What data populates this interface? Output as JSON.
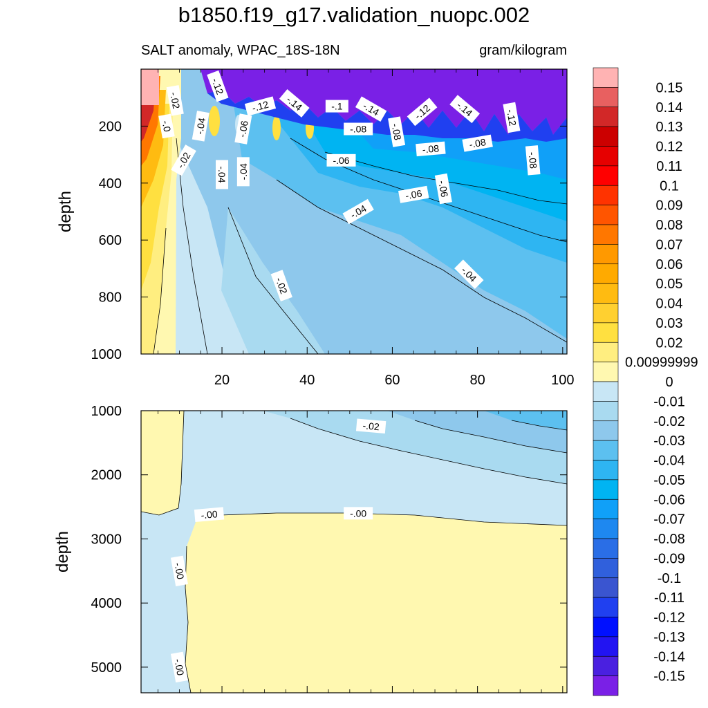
{
  "title": "b1850.f19_g17.validation_nuopc.002",
  "subtitle_left": "SALT anomaly, WPAC_18S-18N",
  "subtitle_right": "gram/kilogram",
  "chart_data": [
    {
      "type": "heatmap",
      "panel": "upper",
      "ylabel": "depth",
      "xlabel": "",
      "xlim": [
        1,
        101
      ],
      "ylim": [
        1000,
        0
      ],
      "x_ticks": [
        "20",
        "40",
        "60",
        "80",
        "100"
      ],
      "y_ticks": [
        "200",
        "400",
        "600",
        "800",
        "1000"
      ],
      "contour_labels": [
        {
          "text": "-.12",
          "x": 19,
          "y": 60
        },
        {
          "text": "-.12",
          "x": 29,
          "y": 130
        },
        {
          "text": "-.14",
          "x": 37,
          "y": 120
        },
        {
          "text": "-.1",
          "x": 47,
          "y": 130
        },
        {
          "text": "-.14",
          "x": 55,
          "y": 140
        },
        {
          "text": "-.12",
          "x": 67,
          "y": 150
        },
        {
          "text": "-.14",
          "x": 77,
          "y": 140
        },
        {
          "text": "-.12",
          "x": 88,
          "y": 170
        },
        {
          "text": "-.02",
          "x": 9,
          "y": 110
        },
        {
          "text": "-.0",
          "x": 7,
          "y": 200
        },
        {
          "text": "-.04",
          "x": 15,
          "y": 200
        },
        {
          "text": "-.06",
          "x": 25,
          "y": 210
        },
        {
          "text": "-.08",
          "x": 52,
          "y": 210
        },
        {
          "text": "-.08",
          "x": 61,
          "y": 220
        },
        {
          "text": "-.08",
          "x": 69,
          "y": 280
        },
        {
          "text": "-.08",
          "x": 80,
          "y": 260
        },
        {
          "text": "-.08",
          "x": 93,
          "y": 320
        },
        {
          "text": "-.02",
          "x": 11,
          "y": 320
        },
        {
          "text": "-.04",
          "x": 20,
          "y": 370
        },
        {
          "text": "-.04",
          "x": 25,
          "y": 360
        },
        {
          "text": "-.06",
          "x": 48,
          "y": 320
        },
        {
          "text": "-.06",
          "x": 65,
          "y": 440
        },
        {
          "text": "-.06",
          "x": 72,
          "y": 420
        },
        {
          "text": "-.04",
          "x": 52,
          "y": 500
        },
        {
          "text": "-.04",
          "x": 78,
          "y": 720
        },
        {
          "text": "-.02",
          "x": 34,
          "y": 760
        }
      ]
    },
    {
      "type": "heatmap",
      "panel": "lower",
      "ylabel": "depth",
      "xlabel": "",
      "xlim": [
        1,
        101
      ],
      "ylim": [
        5400,
        1000
      ],
      "y_ticks": [
        "1000",
        "2000",
        "3000",
        "4000",
        "5000"
      ],
      "contour_labels": [
        {
          "text": "-.02",
          "x": 55,
          "y": 1240
        },
        {
          "text": "-.00",
          "x": 17,
          "y": 2620
        },
        {
          "text": "-.00",
          "x": 52,
          "y": 2600
        },
        {
          "text": "-.00",
          "x": 10,
          "y": 3500
        },
        {
          "text": "-.00",
          "x": 10,
          "y": 5000
        }
      ]
    }
  ],
  "colorbar": {
    "labels": [
      "0.15",
      "0.14",
      "0.13",
      "0.12",
      "0.11",
      "0.1",
      "0.09",
      "0.08",
      "0.07",
      "0.06",
      "0.05",
      "0.04",
      "0.03",
      "0.02",
      "0.00999999",
      "0",
      "-0.01",
      "-0.02",
      "-0.03",
      "-0.04",
      "-0.05",
      "-0.06",
      "-0.07",
      "-0.08",
      "-0.09",
      "-0.1",
      "-0.11",
      "-0.12",
      "-0.13",
      "-0.14",
      "-0.15"
    ],
    "colors": [
      "#FFB3B3",
      "#E86060",
      "#D22828",
      "#CC0000",
      "#E60000",
      "#FF0000",
      "#FF3300",
      "#FF5500",
      "#FF7700",
      "#FF9900",
      "#FFAA00",
      "#FFBB11",
      "#FFD030",
      "#FFE040",
      "#FFEE80",
      "#FFF8B0",
      "#C8E6F5",
      "#A9DAF0",
      "#8EC8EC",
      "#5CC0F0",
      "#2EB5F2",
      "#00B4F2",
      "#10A0F8",
      "#1E88F0",
      "#2A6EE6",
      "#3060DC",
      "#3A55D0",
      "#2040F0",
      "#0010FF",
      "#2214F2",
      "#4A20E0",
      "#7A20E6"
    ]
  }
}
